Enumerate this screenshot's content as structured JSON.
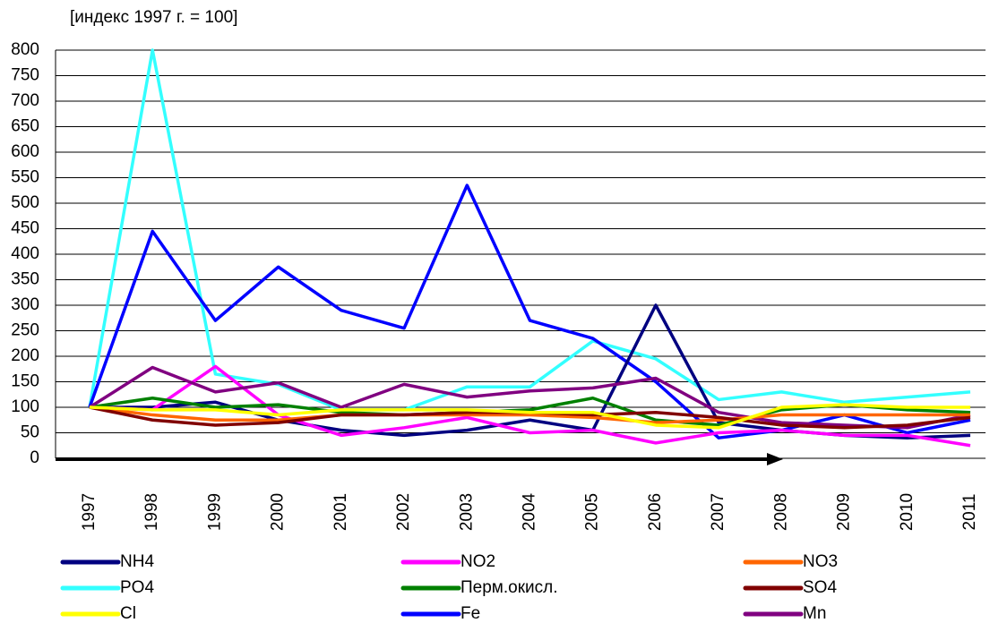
{
  "chart_data": {
    "type": "line",
    "title": "[индекс 1997 г. = 100]",
    "categories": [
      "1997",
      "1998",
      "1999",
      "2000",
      "2001",
      "2002",
      "2003",
      "2004",
      "2005",
      "2006",
      "2007",
      "2008",
      "2009",
      "2010",
      "2011"
    ],
    "ylim": [
      0,
      800
    ],
    "yticks": [
      0,
      50,
      100,
      150,
      200,
      250,
      300,
      350,
      400,
      450,
      500,
      550,
      600,
      650,
      700,
      750,
      800
    ],
    "grid": true,
    "series": [
      {
        "name": "NH4",
        "color": "#000080",
        "values": [
          100,
          100,
          110,
          75,
          55,
          45,
          55,
          75,
          55,
          300,
          70,
          55,
          45,
          40,
          45
        ]
      },
      {
        "name": "NO2",
        "color": "#ff00ff",
        "values": [
          100,
          95,
          180,
          85,
          45,
          60,
          80,
          50,
          55,
          30,
          50,
          55,
          45,
          45,
          25
        ]
      },
      {
        "name": "NO3",
        "color": "#ff6600",
        "values": [
          100,
          85,
          75,
          75,
          85,
          85,
          85,
          85,
          80,
          70,
          75,
          85,
          85,
          85,
          85
        ]
      },
      {
        "name": "PO4",
        "color": "#33ffff",
        "values": [
          100,
          800,
          165,
          145,
          95,
          95,
          140,
          140,
          230,
          195,
          115,
          130,
          110,
          120,
          130
        ]
      },
      {
        "name": "Перм.окисл.",
        "color": "#008000",
        "values": [
          100,
          118,
          100,
          105,
          90,
          85,
          90,
          95,
          118,
          75,
          65,
          95,
          105,
          95,
          90
        ]
      },
      {
        "name": "SO4",
        "color": "#800000",
        "values": [
          100,
          75,
          65,
          70,
          85,
          85,
          90,
          90,
          85,
          90,
          80,
          65,
          60,
          65,
          80
        ]
      },
      {
        "name": "Cl",
        "color": "#ffff00",
        "values": [
          100,
          95,
          95,
          85,
          95,
          95,
          95,
          90,
          90,
          65,
          60,
          100,
          105,
          100,
          100
        ]
      },
      {
        "name": "Fe",
        "color": "#0000ff",
        "values": [
          100,
          445,
          270,
          375,
          290,
          255,
          535,
          270,
          235,
          150,
          40,
          55,
          85,
          50,
          75
        ]
      },
      {
        "name": "Mn",
        "color": "#800080",
        "values": [
          100,
          178,
          130,
          148,
          100,
          145,
          120,
          132,
          138,
          157,
          90,
          70,
          65,
          60,
          85
        ]
      }
    ]
  }
}
